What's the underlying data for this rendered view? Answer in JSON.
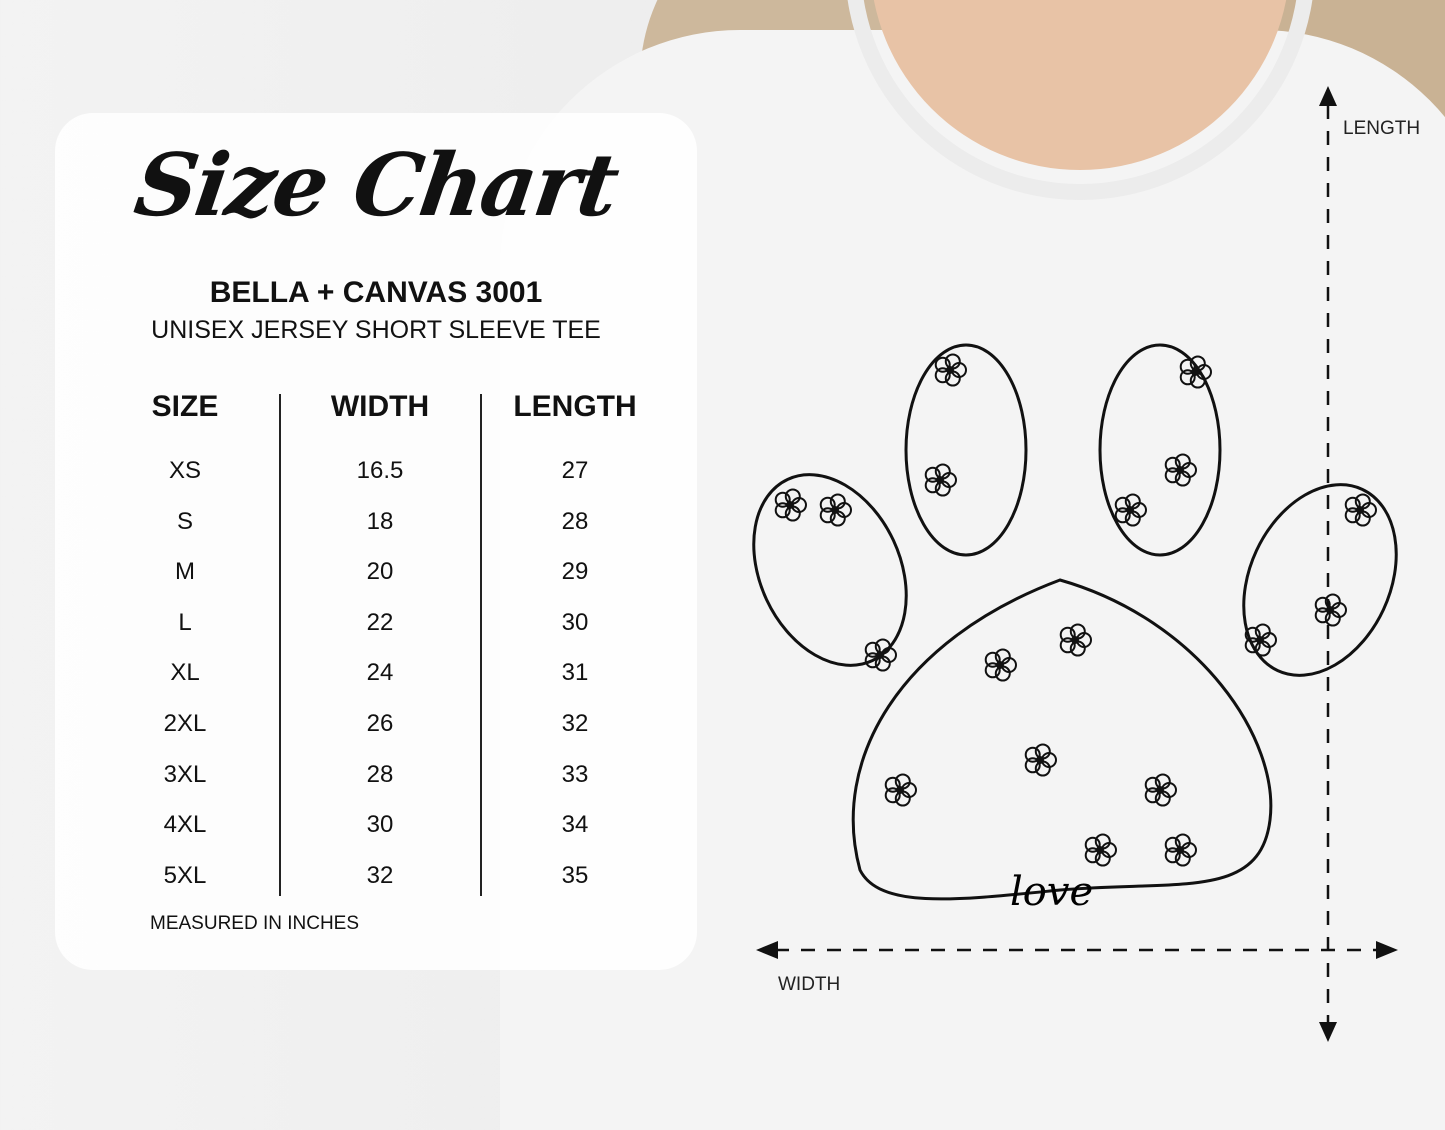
{
  "chart": {
    "title": "Size Chart",
    "brand": "BELLA + CANVAS 3001",
    "product": "UNISEX JERSEY SHORT SLEEVE TEE",
    "headers": [
      "SIZE",
      "WIDTH",
      "LENGTH"
    ],
    "rows": [
      [
        "XS",
        "16.5",
        "27"
      ],
      [
        "S",
        "18",
        "28"
      ],
      [
        "M",
        "20",
        "29"
      ],
      [
        "L",
        "22",
        "30"
      ],
      [
        "XL",
        "24",
        "31"
      ],
      [
        "2XL",
        "26",
        "32"
      ],
      [
        "3XL",
        "28",
        "33"
      ],
      [
        "4XL",
        "30",
        "34"
      ],
      [
        "5XL",
        "32",
        "35"
      ]
    ],
    "footer": "MEASURED IN INCHES"
  },
  "measure": {
    "length_label": "LENGTH",
    "width_label": "WIDTH"
  },
  "design": {
    "word": "love"
  },
  "colors": {
    "text": "#111111",
    "panel": "#ffffff",
    "shirt": "#f4f4f4"
  }
}
